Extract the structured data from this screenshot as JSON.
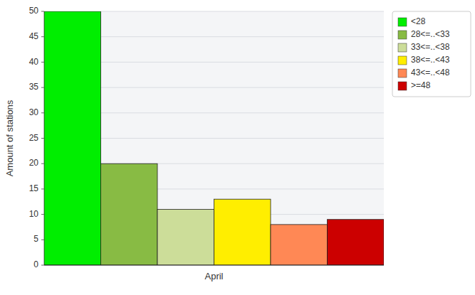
{
  "chart_data": {
    "type": "bar",
    "ylabel": "Amount of stations",
    "categories": [
      "April"
    ],
    "series": [
      {
        "name": "<28",
        "color": "#00ee00",
        "values": [
          50
        ]
      },
      {
        "name": "28<=..<33",
        "color": "#88bb44",
        "values": [
          20
        ]
      },
      {
        "name": "33<=..<38",
        "color": "#ccdd99",
        "values": [
          11
        ]
      },
      {
        "name": "38<=..<43",
        "color": "#ffee00",
        "values": [
          13
        ]
      },
      {
        "name": "43<=..<48",
        "color": "#ff8855",
        "values": [
          8
        ]
      },
      {
        "name": ">=48",
        "color": "#cc0000",
        "values": [
          9
        ]
      }
    ],
    "ylim": [
      0,
      50
    ],
    "yticks": [
      0,
      5,
      10,
      15,
      20,
      25,
      30,
      35,
      40,
      45,
      50
    ],
    "grid": true,
    "legend": "upper right"
  }
}
